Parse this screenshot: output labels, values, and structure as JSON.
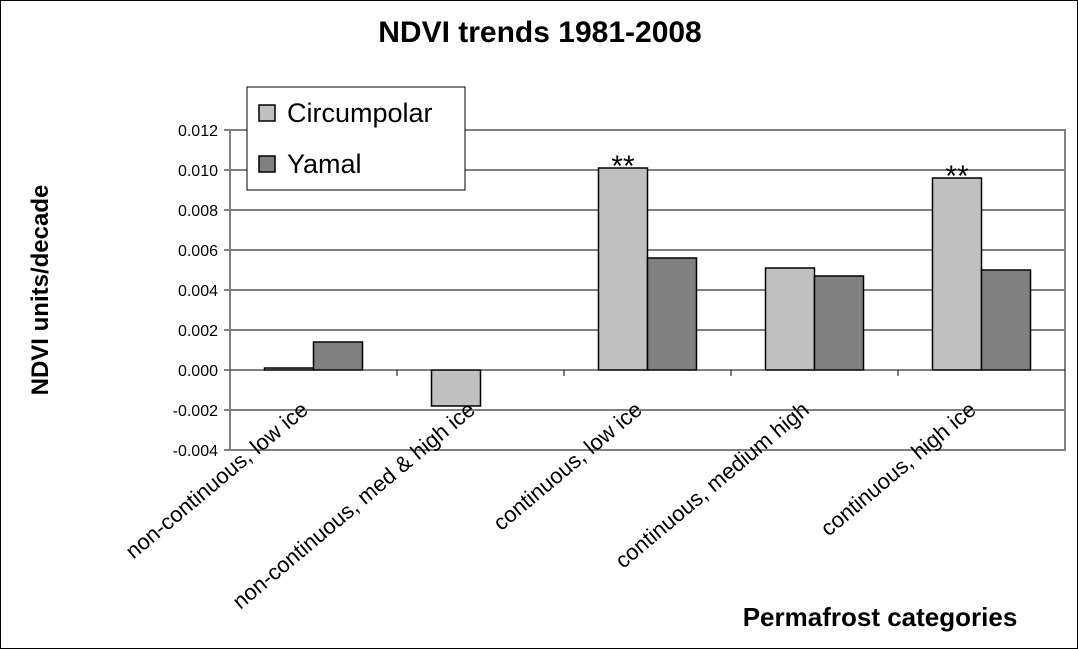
{
  "chart_data": {
    "type": "bar",
    "title": "NDVI trends 1981-2008",
    "y_label": "NDVI units/decade",
    "x_label": "Permafrost categories",
    "categories": [
      "non-continuous, low ice",
      "non-continuous, med & high ice",
      "continuous, low ice",
      "continuous, medium high",
      "continuous, high ice"
    ],
    "series": [
      {
        "name": "Circumpolar",
        "color": "#c0c0c0",
        "values": [
          0.0001,
          -0.0018,
          0.0101,
          0.0051,
          0.0096
        ]
      },
      {
        "name": "Yamal",
        "color": "#808080",
        "values": [
          0.0014,
          null,
          0.0056,
          0.0047,
          0.005
        ]
      }
    ],
    "ylim": [
      -0.004,
      0.012
    ],
    "yticks": [
      {
        "value": -0.004,
        "label": "-0.004"
      },
      {
        "value": -0.002,
        "label": "-0.002"
      },
      {
        "value": 0,
        "label": "0.000"
      },
      {
        "value": 0.002,
        "label": "0.002"
      },
      {
        "value": 0.004,
        "label": "0.004"
      },
      {
        "value": 0.006,
        "label": "0.006"
      },
      {
        "value": 0.008,
        "label": "0.008"
      },
      {
        "value": 0.01,
        "label": "0.010"
      },
      {
        "value": 0.012,
        "label": "0.012"
      }
    ],
    "grid": true,
    "legend": "top-left",
    "annotations": [
      {
        "text": "**",
        "category": "continuous, low ice",
        "series": "Circumpolar"
      },
      {
        "text": "**",
        "category": "continuous, high ice",
        "series": "Circumpolar"
      }
    ]
  }
}
